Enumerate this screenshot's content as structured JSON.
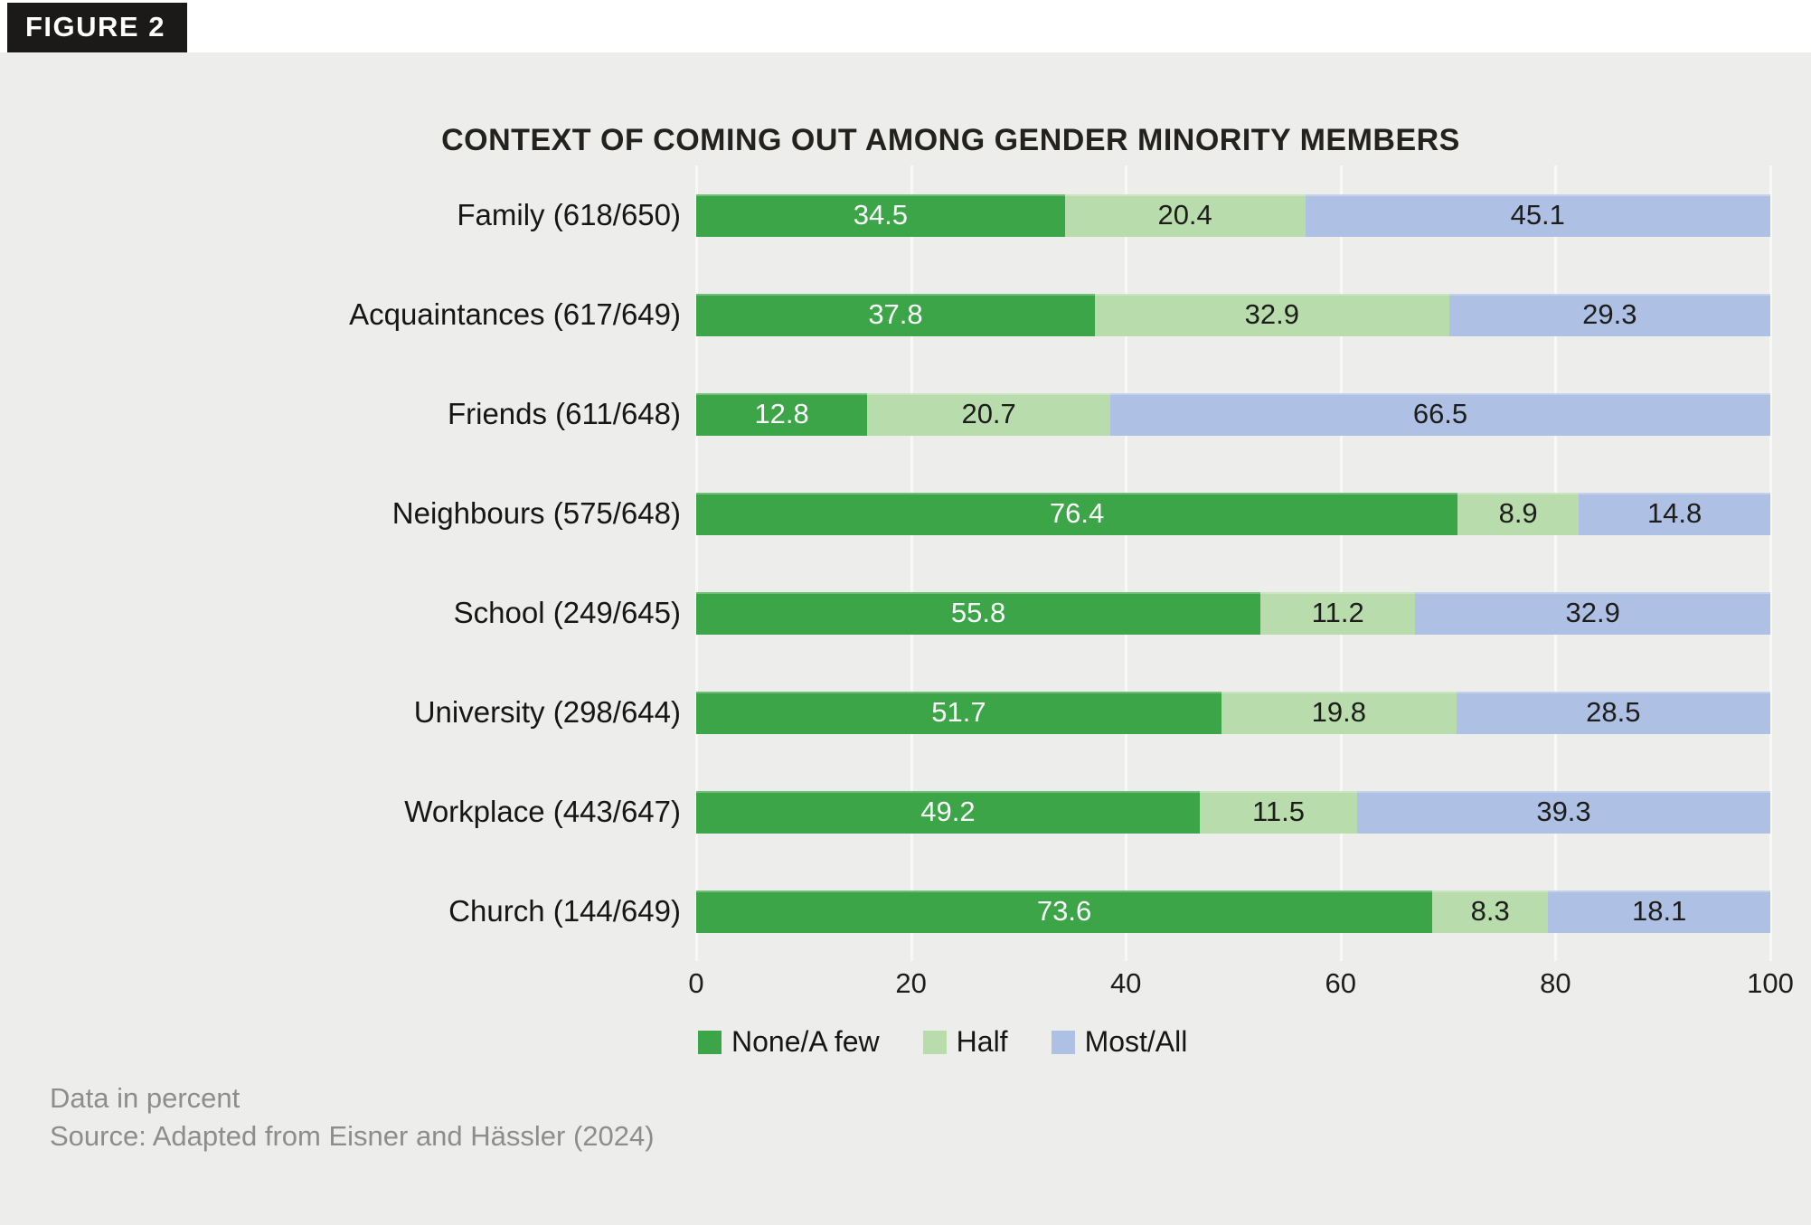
{
  "figure_label": "FIGURE 2",
  "title": "CONTEXT OF COMING OUT AMONG GENDER MINORITY MEMBERS",
  "footer": {
    "note": "Data in percent",
    "source": "Source: Adapted from Eisner and Hässler (2024)"
  },
  "colors": {
    "none_few": "#3ba548",
    "half": "#b8dcab",
    "most_all": "#aec0e4",
    "background": "#ededeb",
    "badge_bg": "#1c1a19",
    "grid": "#f8f8f7",
    "text_dark": "#23221f",
    "muted": "#8d8d8b"
  },
  "chart_data": {
    "type": "bar",
    "orientation": "horizontal",
    "stacked": true,
    "title": "CONTEXT OF COMING OUT AMONG GENDER MINORITY MEMBERS",
    "xlabel": "",
    "ylabel": "",
    "xlim": [
      0,
      100
    ],
    "x_ticks": [
      0,
      20,
      40,
      60,
      80,
      100
    ],
    "grid": true,
    "legend_position": "bottom",
    "units": "percent",
    "categories": [
      "Family (618/650)",
      "Acquaintances (617/649)",
      "Friends (611/648)",
      "Neighbours (575/648)",
      "School (249/645)",
      "University (298/644)",
      "Workplace (443/647)",
      "Church (144/649)"
    ],
    "series": [
      {
        "name": "None/A few",
        "color_key": "none_few",
        "values": [
          34.5,
          37.8,
          12.8,
          76.4,
          55.8,
          51.7,
          49.2,
          73.6
        ]
      },
      {
        "name": "Half",
        "color_key": "half",
        "values": [
          20.4,
          32.9,
          20.7,
          8.9,
          11.2,
          19.8,
          11.5,
          8.3
        ]
      },
      {
        "name": "Most/All",
        "color_key": "most_all",
        "values": [
          45.1,
          29.3,
          66.5,
          14.8,
          32.9,
          28.5,
          39.3,
          18.1
        ]
      }
    ]
  }
}
